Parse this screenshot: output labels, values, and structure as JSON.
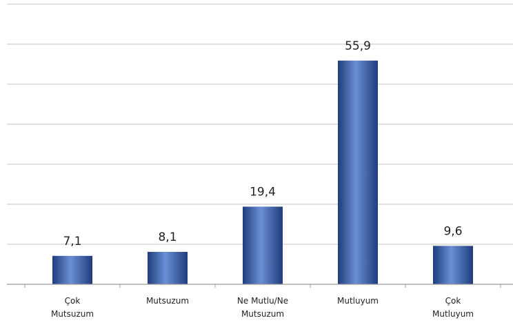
{
  "chart_data": {
    "type": "bar",
    "categories": [
      [
        "Çok",
        "Mutsuzum"
      ],
      [
        "Mutsuzum"
      ],
      [
        "Ne Mutlu/Ne",
        "Mutsuzum"
      ],
      [
        "Mutluyum"
      ],
      [
        "Çok",
        "Mutluyum"
      ]
    ],
    "values": [
      7.1,
      8.1,
      19.4,
      55.9,
      9.6
    ],
    "value_labels": [
      "7,1",
      "8,1",
      "19,4",
      "55,9",
      "9,6"
    ],
    "ylim": [
      0,
      70
    ],
    "ygrid_step": 10,
    "grid": true,
    "y_tick_labels_shown": false,
    "legend": "none",
    "colors": {
      "bar_dark": "#1f3d7a",
      "bar_mid": "#4f74bf",
      "bar_light": "#6b8fd6",
      "grid": "#cfcfcf",
      "axis": "#9a9a9a",
      "text": "#222222"
    }
  }
}
